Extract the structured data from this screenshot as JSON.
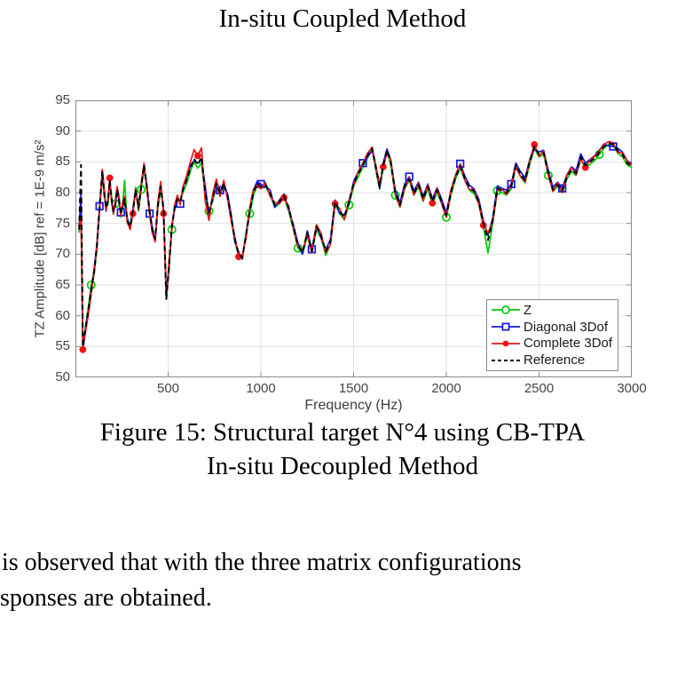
{
  "top_caption": "In-situ Coupled Method",
  "figure_caption": {
    "line1": "Figure 15: Structural target N°4 using CB-TPA",
    "line2": "In-situ Decoupled Method"
  },
  "body_text": {
    "line1": "is observed that with the three matrix configurations",
    "line2": "sponses are obtained."
  },
  "chart_data": {
    "type": "line",
    "title": "",
    "xlabel": "Frequency (Hz)",
    "ylabel": "TZ Amplitude [dB] ref = 1E-9 m/s²",
    "xlim": [
      0,
      3000
    ],
    "ylim": [
      50,
      95
    ],
    "x_ticks": [
      500,
      1000,
      1500,
      2000,
      2500,
      3000
    ],
    "y_ticks": [
      50,
      55,
      60,
      65,
      70,
      75,
      80,
      85,
      90,
      95
    ],
    "grid": true,
    "legend_position": "lower right",
    "marker_every": 11,
    "x": [
      20,
      30,
      40,
      55,
      70,
      85,
      100,
      115,
      130,
      145,
      155,
      165,
      175,
      185,
      195,
      205,
      215,
      225,
      235,
      245,
      255,
      265,
      280,
      295,
      310,
      325,
      340,
      355,
      370,
      385,
      400,
      415,
      430,
      445,
      460,
      475,
      490,
      505,
      520,
      535,
      550,
      565,
      580,
      600,
      620,
      640,
      660,
      680,
      700,
      720,
      740,
      760,
      780,
      800,
      820,
      840,
      860,
      880,
      900,
      920,
      940,
      960,
      980,
      1000,
      1025,
      1050,
      1075,
      1100,
      1125,
      1150,
      1175,
      1200,
      1225,
      1250,
      1275,
      1300,
      1325,
      1350,
      1375,
      1400,
      1425,
      1450,
      1475,
      1500,
      1525,
      1550,
      1575,
      1600,
      1620,
      1640,
      1660,
      1680,
      1700,
      1725,
      1750,
      1775,
      1800,
      1825,
      1850,
      1875,
      1900,
      1925,
      1950,
      1975,
      2000,
      2025,
      2050,
      2075,
      2100,
      2125,
      2150,
      2175,
      2200,
      2225,
      2250,
      2275,
      2300,
      2325,
      2350,
      2375,
      2400,
      2425,
      2450,
      2475,
      2500,
      2525,
      2550,
      2575,
      2600,
      2625,
      2650,
      2675,
      2700,
      2725,
      2750,
      2775,
      2800,
      2825,
      2850,
      2875,
      2900,
      2925,
      2950,
      2975,
      3000
    ],
    "series": [
      {
        "name": "Z",
        "color": "#00cc00",
        "marker": "circle-open",
        "marker_offset": 5,
        "dashed": false,
        "values": [
          73.5,
          77,
          54.6,
          58.4,
          61.5,
          65,
          66.5,
          70.5,
          77,
          83,
          79.5,
          77.8,
          78,
          81.5,
          79.3,
          76.5,
          78.2,
          80,
          79.2,
          76,
          78.3,
          82,
          75,
          74.8,
          77.2,
          80.9,
          77,
          80.5,
          84,
          80.6,
          77.3,
          73.6,
          72.8,
          77.5,
          80.6,
          77,
          63.5,
          68.4,
          74,
          77.8,
          78.6,
          78.8,
          80,
          81.5,
          83.5,
          85,
          84,
          84.8,
          79.6,
          77,
          78.6,
          81,
          79.6,
          81.2,
          79.8,
          75.5,
          72,
          69.8,
          69.3,
          73.4,
          76.6,
          79.6,
          81.2,
          80.7,
          81,
          79.6,
          77.6,
          78.2,
          79.2,
          77,
          74,
          71,
          70,
          73,
          70.2,
          74,
          72.6,
          69.8,
          71.6,
          78,
          76.6,
          75.6,
          78,
          81,
          82.6,
          84.2,
          85.6,
          87.3,
          83.6,
          80.6,
          84,
          86.6,
          84.6,
          79.6,
          77.6,
          80.6,
          82,
          79.6,
          81,
          78.6,
          80.6,
          78.2,
          80,
          78.2,
          76,
          79.6,
          82.2,
          84,
          82,
          80.4,
          79.8,
          78.2,
          74.4,
          70.2,
          75,
          80.3,
          80,
          79.6,
          80.6,
          84.2,
          82.6,
          81.6,
          84.6,
          87.2,
          85.8,
          86.2,
          82.8,
          80.2,
          81,
          80,
          82.2,
          83.4,
          82.8,
          85.4,
          84,
          84.6,
          85.2,
          86.2,
          87.2,
          87.8,
          87.7,
          86.4,
          85.8,
          84.5,
          84.1
        ]
      },
      {
        "name": "Diagonal 3Dof",
        "color": "#1414e0",
        "marker": "square-open",
        "marker_offset": 8,
        "dashed": false,
        "values": [
          74,
          80,
          54.2,
          58.2,
          60.6,
          64.4,
          67.4,
          71.4,
          77.8,
          83.2,
          80.4,
          77,
          79,
          81.8,
          78.6,
          77.4,
          77.6,
          80.8,
          78.6,
          76.8,
          77.6,
          78.6,
          75.8,
          74.2,
          77.4,
          80.2,
          78,
          81.4,
          84.2,
          81.4,
          76.6,
          74.4,
          72.2,
          78.4,
          81.4,
          77,
          63,
          67.6,
          74.8,
          77.2,
          79.4,
          78.2,
          80.8,
          82.4,
          84.4,
          85.2,
          84.8,
          85.4,
          81,
          76.4,
          79.4,
          81.8,
          80.4,
          81,
          79.8,
          76.4,
          72,
          70.4,
          69.2,
          73.4,
          77.4,
          80.4,
          81.8,
          81.4,
          81,
          80.4,
          77.6,
          78.8,
          79.8,
          77.2,
          74.8,
          71.8,
          70,
          73.8,
          70.8,
          74.8,
          72.6,
          70.8,
          72.4,
          78.8,
          76.6,
          76.4,
          78.2,
          81.8,
          83.4,
          84.8,
          85.8,
          86.8,
          84.4,
          80.6,
          84.8,
          87.1,
          85.4,
          80.4,
          78.4,
          81.4,
          82.6,
          80.3,
          81.7,
          79.4,
          81.4,
          79,
          80.8,
          78.9,
          76.7,
          80.4,
          82.9,
          84.7,
          82.7,
          81.2,
          80.6,
          78.9,
          75.4,
          73,
          75.9,
          81.1,
          80.7,
          80.4,
          81.4,
          84.8,
          83.4,
          82.4,
          85.4,
          87.1,
          86.6,
          86.9,
          83.6,
          80.9,
          81.7,
          80.7,
          82.9,
          84.2,
          83.6,
          86.3,
          84.8,
          85.4,
          86,
          86.9,
          87.9,
          87.6,
          87.5,
          87.2,
          86.6,
          85.2,
          84.7
        ]
      },
      {
        "name": "Complete 3Dof",
        "color": "#ee1414",
        "marker": "circle-filled",
        "marker_offset": 2,
        "dashed": false,
        "values": [
          74.3,
          76,
          54.5,
          57.6,
          60.2,
          63.6,
          67,
          70.8,
          77.2,
          83.8,
          80.8,
          77.2,
          78.8,
          82.4,
          78.4,
          76.6,
          78.4,
          81,
          79.4,
          76.2,
          78.4,
          79.4,
          75.2,
          74,
          76.6,
          80.6,
          77.2,
          81.6,
          84.8,
          80.4,
          76.4,
          73.4,
          72,
          78.6,
          81.8,
          76.6,
          62.8,
          68.8,
          74.2,
          78,
          79.6,
          78,
          81,
          82.8,
          85,
          87,
          86,
          87.3,
          78.6,
          75.5,
          79.8,
          82.2,
          79.4,
          82,
          79,
          75.4,
          72.8,
          69.6,
          69.8,
          72.6,
          77.6,
          80.6,
          81.2,
          80.6,
          81.6,
          79.4,
          78.4,
          78.2,
          79.2,
          77.8,
          74.2,
          71.2,
          70.6,
          73.2,
          70.2,
          74.8,
          73.4,
          70.2,
          71.6,
          78.2,
          77.4,
          75.6,
          78.8,
          81.2,
          83.4,
          84.8,
          86.4,
          87.4,
          84.4,
          81.4,
          84.2,
          86.4,
          85.4,
          79.7,
          77.7,
          80.7,
          82.5,
          79.6,
          81.6,
          78.7,
          81.3,
          78.3,
          80.7,
          78.2,
          76,
          80.3,
          82.8,
          84.6,
          82,
          80.5,
          80.5,
          78.2,
          74.7,
          73.5,
          75.2,
          80.4,
          80.6,
          79.7,
          81.3,
          84.2,
          82.7,
          81.7,
          85.3,
          87.8,
          85.9,
          86.8,
          82.9,
          80.2,
          81.6,
          80,
          82.8,
          84.1,
          82.9,
          85.5,
          84.1,
          85.3,
          85.9,
          86.8,
          87.8,
          88.3,
          88.1,
          86.5,
          86.5,
          85.1,
          84.5
        ]
      },
      {
        "name": "Reference",
        "color": "#000000",
        "marker": null,
        "marker_offset": 0,
        "dashed": true,
        "values": [
          74,
          84.5,
          55,
          58,
          61,
          64,
          67,
          71,
          77.5,
          83.5,
          80,
          77.5,
          78.5,
          82,
          79,
          77,
          78,
          80.5,
          79,
          76.5,
          78,
          79,
          75.5,
          74.5,
          77,
          80.5,
          77.5,
          81,
          84.5,
          81,
          77,
          74,
          72.5,
          78,
          81,
          77.5,
          62.7,
          68,
          74.5,
          77.5,
          79,
          78.5,
          80.5,
          82,
          84,
          85.5,
          84.5,
          85.8,
          80,
          76.8,
          79,
          81.5,
          80,
          81.5,
          79.5,
          76,
          72.5,
          70,
          69.5,
          73,
          77,
          80,
          81.5,
          81,
          81.3,
          80,
          78,
          78.5,
          79.5,
          77.5,
          74.5,
          71.5,
          70.3,
          73.5,
          70.5,
          74.5,
          73,
          70.5,
          72,
          78.5,
          77,
          76,
          78.5,
          81.5,
          83,
          84.5,
          86,
          87.2,
          84,
          81,
          84.5,
          86.9,
          85,
          80,
          78,
          81,
          82.2,
          79.9,
          81.3,
          79,
          81,
          78.6,
          80.4,
          78.5,
          76.3,
          80,
          82.5,
          84.3,
          82.3,
          80.8,
          80.2,
          78.5,
          75,
          72.3,
          75.5,
          80.7,
          80.3,
          80,
          81,
          84.5,
          83,
          82,
          85,
          87.5,
          86.2,
          86.5,
          83.2,
          80.5,
          81.3,
          80.3,
          82.5,
          83.8,
          83.2,
          85.8,
          84.4,
          85,
          85.6,
          86.5,
          87.5,
          88,
          87.9,
          86.8,
          86.2,
          84.8,
          84.3
        ]
      }
    ]
  }
}
